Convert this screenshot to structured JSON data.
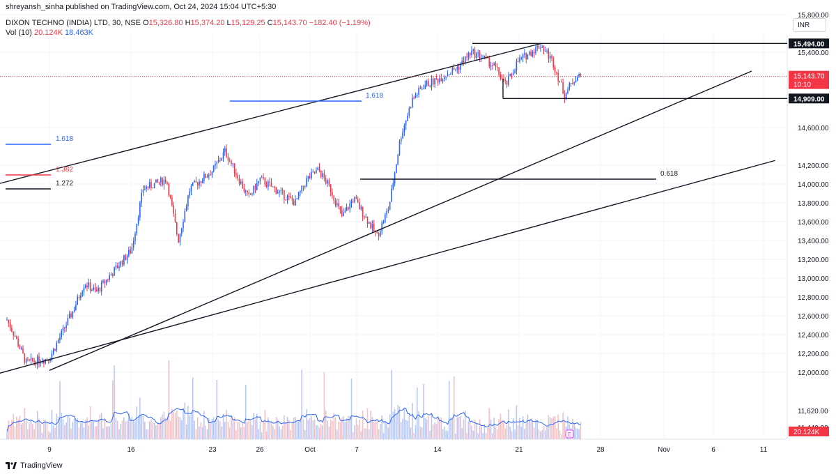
{
  "header": {
    "published": "shreyansh_sinha published on TradingView.com, Oct 24, 2024 15:04 UTC+5:30",
    "symbol": "DIXON TECHNO (INDIA) LTD, 30, NSE",
    "ohlc": {
      "o_label": "O",
      "o": "15,326.80",
      "h_label": "H",
      "h": "15,374.20",
      "l_label": "L",
      "l": "15,129.25",
      "c_label": "C",
      "c": "15,143.70",
      "change": "−182.40 (−1.19%)"
    },
    "vol_label": "Vol (10)",
    "vol_value": "20.124K",
    "vol_ma": "18.463K",
    "currency": "INR"
  },
  "footer": {
    "brand": "TradingView"
  },
  "colors": {
    "up": "#2962ff",
    "down": "#f23645",
    "line": "#131722",
    "vol_ma": "#2962ff"
  },
  "chart_data": {
    "type": "candlestick",
    "interval": "30",
    "xlabel": "",
    "ylabel": "",
    "x_ticks": [
      "9",
      "16",
      "23",
      "26",
      "Oct",
      "7",
      "14",
      "21",
      "28",
      "Nov",
      "6",
      "11"
    ],
    "y_ticks": [
      12000,
      12200,
      12400,
      12600,
      12800,
      13000,
      13200,
      13400,
      13600,
      13800,
      14000,
      14200,
      14600,
      15400,
      15800
    ],
    "y_tick_labels": [
      "12,000.00",
      "12,200.00",
      "12,400.00",
      "12,600.00",
      "12,800.00",
      "13,000.00",
      "13,200.00",
      "13,400.00",
      "13,600.00",
      "13,800.00",
      "14,000.00",
      "14,200.00",
      "14,600.00",
      "15,400.00",
      "15,800.00"
    ],
    "ylim": [
      11950,
      16000
    ],
    "volume_ticks": [
      "11,620.00",
      "11,440.00"
    ],
    "price_path": [
      [
        "Sep 4",
        12900
      ],
      [
        "Sep 5",
        12650
      ],
      [
        "Sep 6",
        12400
      ],
      [
        "Sep 7",
        12100
      ],
      [
        "Sep 9",
        12150
      ],
      [
        "Sep 10",
        12400
      ],
      [
        "Sep 11",
        12650
      ],
      [
        "Sep 12",
        12950
      ],
      [
        "Sep 13",
        12850
      ],
      [
        "Sep 14",
        13000
      ],
      [
        "Sep 16",
        13300
      ],
      [
        "Sep 17",
        13950
      ],
      [
        "Sep 18",
        14000
      ],
      [
        "Sep 19",
        14050
      ],
      [
        "Sep 20",
        13400
      ],
      [
        "Sep 21",
        13950
      ],
      [
        "Sep 23",
        14150
      ],
      [
        "Sep 24",
        14350
      ],
      [
        "Sep 25",
        14100
      ],
      [
        "Sep 26",
        13850
      ],
      [
        "Sep 27",
        14050
      ],
      [
        "Sep 30",
        13800
      ],
      [
        "Oct 1",
        14050
      ],
      [
        "Oct 2",
        14150
      ],
      [
        "Oct 3",
        13950
      ],
      [
        "Oct 4",
        13650
      ],
      [
        "Oct 5",
        13850
      ],
      [
        "Oct 7",
        13450
      ],
      [
        "Oct 8",
        13750
      ],
      [
        "Oct 9",
        14500
      ],
      [
        "Oct 10",
        14900
      ],
      [
        "Oct 11",
        15050
      ],
      [
        "Oct 12",
        15100
      ],
      [
        "Oct 14",
        15250
      ],
      [
        "Oct 15",
        15400
      ],
      [
        "Oct 16",
        15350
      ],
      [
        "Oct 17",
        15250
      ],
      [
        "Oct 18",
        15050
      ],
      [
        "Oct 19",
        15300
      ],
      [
        "Oct 21",
        15480
      ],
      [
        "Oct 22",
        15300
      ],
      [
        "Oct 23",
        14950
      ],
      [
        "Oct 24",
        15143.7
      ]
    ],
    "last_close": "15,143.70",
    "countdown": "10:10",
    "last_volume": "20.124K",
    "horizontal_levels": [
      {
        "value": 15494,
        "label": "15,494.00"
      },
      {
        "value": 14909,
        "label": "14,909.00"
      }
    ],
    "fib_labels": [
      {
        "label": "1.618",
        "value": 15180
      },
      {
        "label": "1.618",
        "value": 14650
      },
      {
        "label": "1.382",
        "value": 14330
      },
      {
        "label": "1.272",
        "value": 14120
      },
      {
        "label": "0.618",
        "value": 14200
      }
    ],
    "trend_lines": [
      {
        "from": [
          "Sep 3",
          13950
        ],
        "to": [
          "Oct 21",
          15494
        ]
      },
      {
        "from": [
          "Sep 9",
          12020
        ],
        "to": [
          "Nov 8",
          15200
        ]
      },
      {
        "from": [
          "Sep 3",
          11930
        ],
        "to": [
          "Nov 10",
          14250
        ]
      }
    ],
    "event_marker": "E",
    "grid": true
  }
}
